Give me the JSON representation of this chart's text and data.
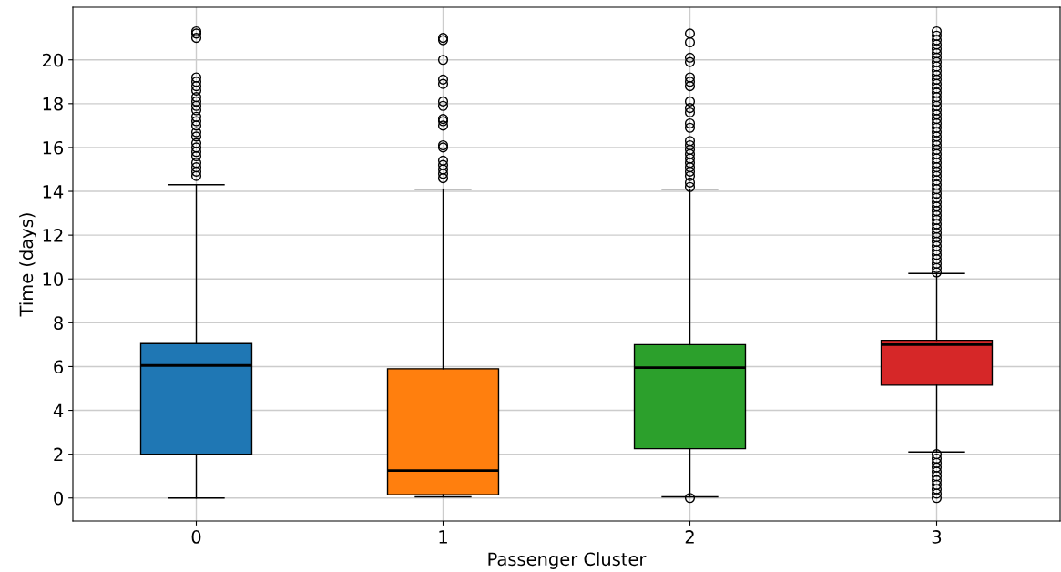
{
  "chart_data": {
    "type": "box",
    "xlabel": "Passenger Cluster",
    "ylabel": "Time (days)",
    "categories": [
      "0",
      "1",
      "2",
      "3"
    ],
    "colors": [
      "#1f77b4",
      "#ff7f0e",
      "#2ca02c",
      "#d62728"
    ],
    "ylim": [
      -1.05,
      22.4
    ],
    "yticks": [
      0,
      2,
      4,
      6,
      8,
      10,
      12,
      14,
      16,
      18,
      20
    ],
    "grid": true,
    "boxes": [
      {
        "low": 0,
        "q1": 2.0,
        "median": 6.05,
        "q3": 7.05,
        "high": 14.3,
        "outliers": [
          14.7,
          14.9,
          15.1,
          15.3,
          15.6,
          15.8,
          16.0,
          16.2,
          16.5,
          16.7,
          17.0,
          17.2,
          17.4,
          17.7,
          17.9,
          18.1,
          18.3,
          18.6,
          18.8,
          19.0,
          19.2,
          21.0,
          21.2,
          21.3
        ]
      },
      {
        "low": 0.05,
        "q1": 0.15,
        "median": 1.25,
        "q3": 5.9,
        "high": 14.1,
        "outliers": [
          14.6,
          14.8,
          15.0,
          15.2,
          15.4,
          16.0,
          16.1,
          17.0,
          17.2,
          17.3,
          17.9,
          18.1,
          18.9,
          19.1,
          20.0,
          20.9,
          21.0
        ]
      },
      {
        "low": 0.05,
        "q1": 2.25,
        "median": 5.95,
        "q3": 7.0,
        "high": 14.1,
        "outliers": [
          0.0,
          14.2,
          14.4,
          14.7,
          14.9,
          15.1,
          15.3,
          15.5,
          15.7,
          15.9,
          16.1,
          16.3,
          16.9,
          17.1,
          17.6,
          17.8,
          18.1,
          18.8,
          19.0,
          19.2,
          19.9,
          20.1,
          20.8,
          21.2
        ]
      },
      {
        "low": 2.1,
        "q1": 5.15,
        "median": 7.0,
        "q3": 7.2,
        "high": 10.25,
        "outliers": [
          0.0,
          0.2,
          0.4,
          0.6,
          0.8,
          1.0,
          1.2,
          1.4,
          1.6,
          1.8,
          2.0,
          10.3,
          10.5,
          10.7,
          10.9,
          11.1,
          11.3,
          11.5,
          11.7,
          11.9,
          12.1,
          12.3,
          12.5,
          12.7,
          12.9,
          13.1,
          13.3,
          13.5,
          13.7,
          13.9,
          14.1,
          14.3,
          14.5,
          14.7,
          14.9,
          15.1,
          15.3,
          15.5,
          15.7,
          15.9,
          16.1,
          16.3,
          16.5,
          16.7,
          16.9,
          17.1,
          17.3,
          17.5,
          17.7,
          17.9,
          18.1,
          18.3,
          18.5,
          18.7,
          18.9,
          19.1,
          19.3,
          19.5,
          19.7,
          19.9,
          20.1,
          20.3,
          20.5,
          20.7,
          20.9,
          21.1,
          21.3
        ]
      }
    ]
  }
}
